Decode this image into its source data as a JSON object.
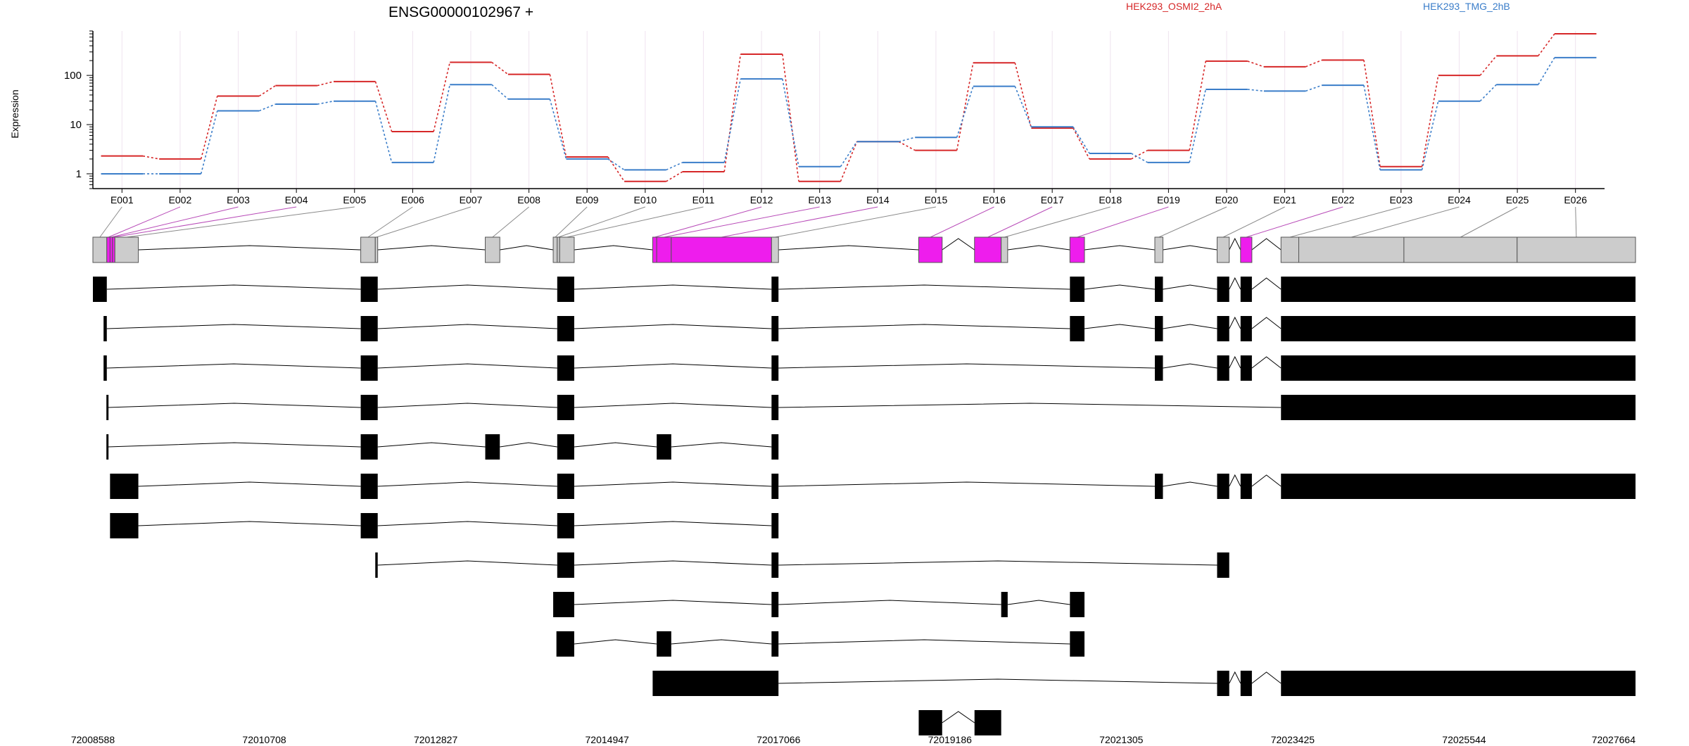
{
  "chart_data": {
    "type": "line",
    "title": "ENSG00000102967 +",
    "ylabel": "Expression",
    "yscale": "log",
    "ylim": [
      0.5,
      800
    ],
    "yticks": [
      1,
      10,
      100
    ],
    "ytick_labels": [
      "1",
      "10",
      "100"
    ],
    "categories": [
      "E001",
      "E002",
      "E003",
      "E004",
      "E005",
      "E006",
      "E007",
      "E008",
      "E009",
      "E010",
      "E011",
      "E012",
      "E013",
      "E014",
      "E015",
      "E016",
      "E017",
      "E018",
      "E019",
      "E020",
      "E021",
      "E022",
      "E023",
      "E024",
      "E025",
      "E026"
    ],
    "series": [
      {
        "name": "HEK293_OSMI2_2hA",
        "color": "#d62728",
        "values": [
          2.3,
          2.0,
          38,
          62,
          75,
          7.2,
          185,
          105,
          2.2,
          0.7,
          1.1,
          270,
          0.7,
          4.5,
          3.0,
          180,
          8.5,
          2.0,
          3.0,
          195,
          150,
          205,
          1.4,
          100,
          250,
          700
        ]
      },
      {
        "name": "HEK293_TMG_2hB",
        "color": "#3a7dc9",
        "values": [
          1.0,
          1.0,
          19,
          26,
          30,
          1.7,
          65,
          33,
          2.0,
          1.2,
          1.7,
          85,
          1.4,
          4.5,
          5.5,
          60,
          9.0,
          2.6,
          1.7,
          52,
          48,
          63,
          1.2,
          30,
          65,
          230
        ]
      }
    ],
    "genomic_ticks": [
      "72008588",
      "72010708",
      "72012827",
      "72014947",
      "72017066",
      "72019186",
      "72021305",
      "72023425",
      "72025544",
      "72027664"
    ],
    "genomic_range": [
      72008588,
      72027664
    ],
    "exon_color_default": "#cccccc",
    "exon_color_significant": "#ee1ded",
    "exon_bins": [
      {
        "id": "E001",
        "s": 72008588,
        "e": 72008760,
        "sig": false
      },
      {
        "id": "E002",
        "s": 72008760,
        "e": 72008800,
        "sig": true
      },
      {
        "id": "E003",
        "s": 72008800,
        "e": 72008830,
        "sig": true
      },
      {
        "id": "E004",
        "s": 72008830,
        "e": 72008860,
        "sig": true
      },
      {
        "id": "E005",
        "s": 72008860,
        "e": 72009150,
        "sig": false
      },
      {
        "id": "E006",
        "s": 72011900,
        "e": 72012080,
        "sig": false
      },
      {
        "id": "E007",
        "s": 72012080,
        "e": 72012110,
        "sig": false
      },
      {
        "id": "E008",
        "s": 72013440,
        "e": 72013620,
        "sig": false
      },
      {
        "id": "E009",
        "s": 72014280,
        "e": 72014330,
        "sig": false
      },
      {
        "id": "E010",
        "s": 72014330,
        "e": 72014360,
        "sig": false
      },
      {
        "id": "E011",
        "s": 72014360,
        "e": 72014540,
        "sig": false
      },
      {
        "id": "E012",
        "s": 72015510,
        "e": 72015560,
        "sig": true
      },
      {
        "id": "E013",
        "s": 72015560,
        "e": 72015740,
        "sig": true
      },
      {
        "id": "E014",
        "s": 72015740,
        "e": 72016980,
        "sig": true
      },
      {
        "id": "E015",
        "s": 72016980,
        "e": 72017066,
        "sig": false
      },
      {
        "id": "E016",
        "s": 72018800,
        "e": 72019090,
        "sig": true
      },
      {
        "id": "E017",
        "s": 72019490,
        "e": 72019820,
        "sig": true
      },
      {
        "id": "E018",
        "s": 72019820,
        "e": 72019900,
        "sig": false
      },
      {
        "id": "E019",
        "s": 72020670,
        "e": 72020850,
        "sig": true
      },
      {
        "id": "E020",
        "s": 72021720,
        "e": 72021820,
        "sig": false
      },
      {
        "id": "E021",
        "s": 72022490,
        "e": 72022640,
        "sig": false
      },
      {
        "id": "E022",
        "s": 72022780,
        "e": 72022920,
        "sig": true
      },
      {
        "id": "E023",
        "s": 72023280,
        "e": 72023500,
        "sig": false
      },
      {
        "id": "E024",
        "s": 72023500,
        "e": 72024800,
        "sig": false
      },
      {
        "id": "E025",
        "s": 72024800,
        "e": 72026200,
        "sig": false
      },
      {
        "id": "E026",
        "s": 72026200,
        "e": 72027664,
        "sig": false
      }
    ],
    "transcripts": [
      [
        [
          72008588,
          72008760
        ],
        [
          72011900,
          72012110
        ],
        [
          72014330,
          72014540
        ],
        [
          72016980,
          72017066
        ],
        [
          72020670,
          72020850
        ],
        [
          72021720,
          72021820
        ],
        [
          72022490,
          72022640
        ],
        [
          72022780,
          72022920
        ],
        [
          72023280,
          72027664
        ]
      ],
      [
        [
          72008720,
          72008760
        ],
        [
          72011900,
          72012110
        ],
        [
          72014330,
          72014540
        ],
        [
          72016980,
          72017066
        ],
        [
          72020670,
          72020850
        ],
        [
          72021720,
          72021820
        ],
        [
          72022490,
          72022640
        ],
        [
          72022780,
          72022920
        ],
        [
          72023280,
          72027664
        ]
      ],
      [
        [
          72008720,
          72008760
        ],
        [
          72011900,
          72012110
        ],
        [
          72014330,
          72014540
        ],
        [
          72016980,
          72017066
        ],
        [
          72021720,
          72021820
        ],
        [
          72022490,
          72022640
        ],
        [
          72022780,
          72022920
        ],
        [
          72023280,
          72027664
        ]
      ],
      [
        [
          72008755,
          72008770
        ],
        [
          72011900,
          72012110
        ],
        [
          72014330,
          72014540
        ],
        [
          72016980,
          72017066
        ],
        [
          72023280,
          72027664
        ]
      ],
      [
        [
          72008755,
          72008770
        ],
        [
          72011900,
          72012110
        ],
        [
          72013440,
          72013620
        ],
        [
          72014330,
          72014540
        ],
        [
          72015560,
          72015740
        ],
        [
          72016980,
          72017066
        ]
      ],
      [
        [
          72008800,
          72009150
        ],
        [
          72011900,
          72012110
        ],
        [
          72014330,
          72014540
        ],
        [
          72016980,
          72017066
        ],
        [
          72021720,
          72021820
        ],
        [
          72022490,
          72022640
        ],
        [
          72022780,
          72022920
        ],
        [
          72023280,
          72027664
        ]
      ],
      [
        [
          72008800,
          72009150
        ],
        [
          72011900,
          72012110
        ],
        [
          72014330,
          72014540
        ],
        [
          72016980,
          72017066
        ]
      ],
      [
        [
          72012080,
          72012110
        ],
        [
          72014330,
          72014540
        ],
        [
          72016980,
          72017066
        ],
        [
          72022490,
          72022640
        ]
      ],
      [
        [
          72014280,
          72014540
        ],
        [
          72016980,
          72017066
        ],
        [
          72019820,
          72019900
        ],
        [
          72020670,
          72020850
        ]
      ],
      [
        [
          72014320,
          72014540
        ],
        [
          72015560,
          72015740
        ],
        [
          72016980,
          72017066
        ],
        [
          72020670,
          72020850
        ]
      ],
      [
        [
          72015510,
          72017066
        ],
        [
          72022490,
          72022640
        ],
        [
          72022780,
          72022920
        ],
        [
          72023280,
          72027664
        ]
      ],
      [
        [
          72018800,
          72019090
        ],
        [
          72019490,
          72019820
        ]
      ]
    ]
  }
}
